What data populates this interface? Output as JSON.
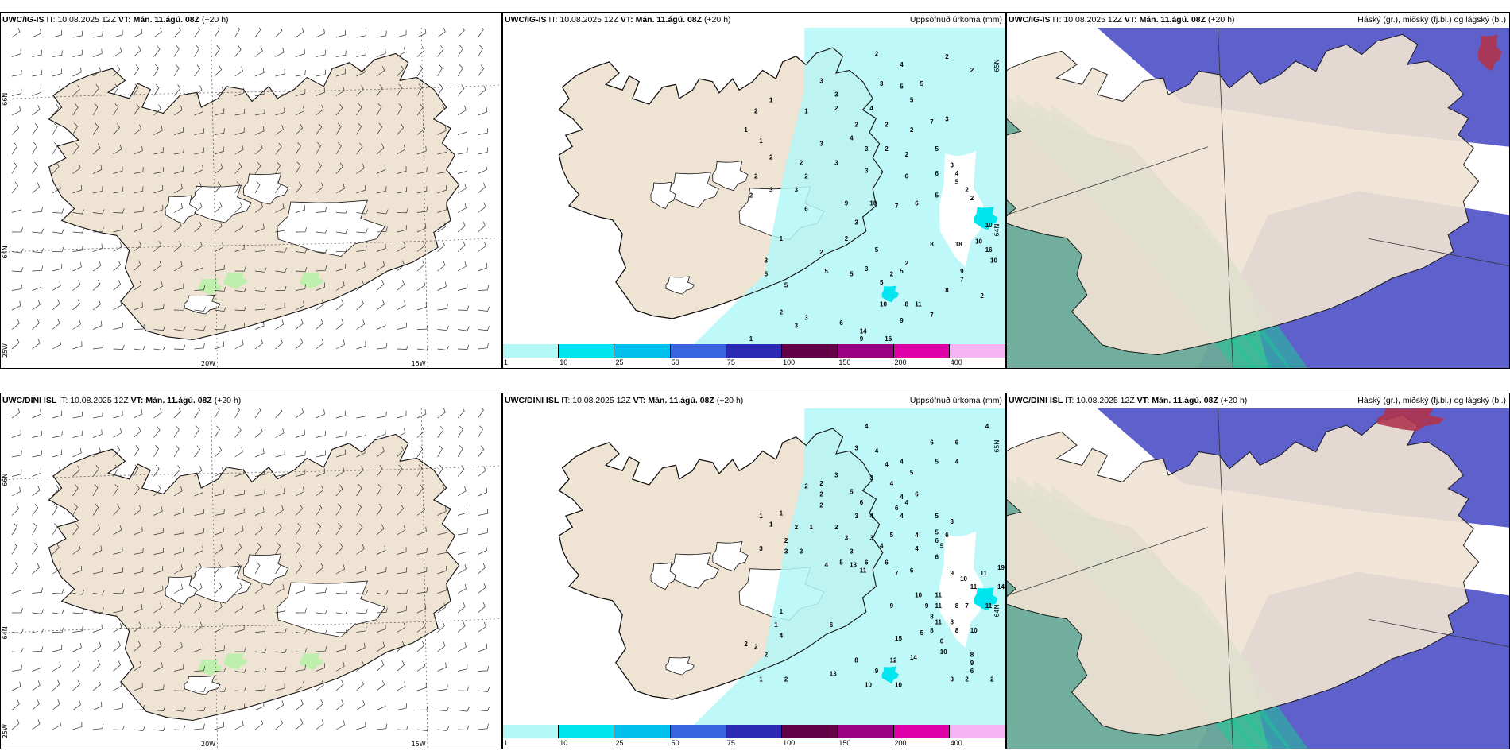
{
  "colors": {
    "land": "#efe3d3",
    "coast": "#111111",
    "precip_light": "#b4f7f7",
    "precip_cyan": "#00e6f0",
    "cloud_high": "#5557c8",
    "cloud_mid": "#1fc796",
    "cloud_low": "#6aaa98",
    "wind_green": "#b9f0a8"
  },
  "rows": [
    {
      "model": "UWC/IG-IS",
      "init_prefix": "IT:",
      "init": "10.08.2025 12Z",
      "valid_prefix": "VT:",
      "valid": "Mán. 11.ágú. 08Z",
      "lead": "(+20 h)"
    },
    {
      "model": "UWC/DINI ISL",
      "init_prefix": "IT:",
      "init": "10.08.2025 12Z",
      "valid_prefix": "VT:",
      "valid": "Mán. 11.ágú. 08Z",
      "lead": "(+20 h)"
    }
  ],
  "precip_title": "Uppsöfnuð úrkoma (mm)",
  "cloud_title": "Háský (gr.), miðský (fj.bl.) og lágský (bl.)",
  "wind_axis_labels": {
    "lat_66": "66N",
    "lat_64": "64N",
    "lat_2": "25W",
    "lon_20": "20W",
    "lon_15": "15W"
  },
  "precip_axis_labels": {
    "lat_65": "65N",
    "lat_64": "64N"
  },
  "colorbar": {
    "colors": [
      "#b4f7f7",
      "#00e6f0",
      "#00c2ec",
      "#3a64e0",
      "#2b2ab4",
      "#640048",
      "#9a0082",
      "#e000a8",
      "#f7b4f5"
    ],
    "ticks": [
      "1",
      "10",
      "25",
      "50",
      "75",
      "100",
      "150",
      "200",
      "400"
    ]
  },
  "precip_values_top": [
    {
      "v": "2",
      "p": [
        0.74,
        0.08
      ]
    },
    {
      "v": "4",
      "p": [
        0.79,
        0.12
      ]
    },
    {
      "v": "2",
      "p": [
        0.88,
        0.09
      ]
    },
    {
      "v": "2",
      "p": [
        0.93,
        0.14
      ]
    },
    {
      "v": "3",
      "p": [
        0.63,
        0.18
      ]
    },
    {
      "v": "3",
      "p": [
        0.75,
        0.19
      ]
    },
    {
      "v": "5",
      "p": [
        0.79,
        0.2
      ]
    },
    {
      "v": "5",
      "p": [
        0.83,
        0.19
      ]
    },
    {
      "v": "3",
      "p": [
        0.66,
        0.23
      ]
    },
    {
      "v": "1",
      "p": [
        0.53,
        0.25
      ]
    },
    {
      "v": "2",
      "p": [
        0.5,
        0.29
      ]
    },
    {
      "v": "1",
      "p": [
        0.6,
        0.29
      ]
    },
    {
      "v": "2",
      "p": [
        0.66,
        0.28
      ]
    },
    {
      "v": "4",
      "p": [
        0.73,
        0.28
      ]
    },
    {
      "v": "5",
      "p": [
        0.81,
        0.25
      ]
    },
    {
      "v": "7",
      "p": [
        0.85,
        0.33
      ]
    },
    {
      "v": "3",
      "p": [
        0.88,
        0.32
      ]
    },
    {
      "v": "1",
      "p": [
        0.48,
        0.36
      ]
    },
    {
      "v": "2",
      "p": [
        0.7,
        0.34
      ]
    },
    {
      "v": "2",
      "p": [
        0.76,
        0.34
      ]
    },
    {
      "v": "2",
      "p": [
        0.81,
        0.36
      ]
    },
    {
      "v": "1",
      "p": [
        0.51,
        0.4
      ]
    },
    {
      "v": "3",
      "p": [
        0.63,
        0.41
      ]
    },
    {
      "v": "4",
      "p": [
        0.69,
        0.39
      ]
    },
    {
      "v": "3",
      "p": [
        0.72,
        0.43
      ]
    },
    {
      "v": "2",
      "p": [
        0.76,
        0.43
      ]
    },
    {
      "v": "2",
      "p": [
        0.8,
        0.45
      ]
    },
    {
      "v": "2",
      "p": [
        0.53,
        0.46
      ]
    },
    {
      "v": "2",
      "p": [
        0.59,
        0.48
      ]
    },
    {
      "v": "3",
      "p": [
        0.66,
        0.48
      ]
    },
    {
      "v": "3",
      "p": [
        0.72,
        0.51
      ]
    },
    {
      "v": "5",
      "p": [
        0.86,
        0.43
      ]
    },
    {
      "v": "2",
      "p": [
        0.5,
        0.53
      ]
    },
    {
      "v": "2",
      "p": [
        0.6,
        0.53
      ]
    },
    {
      "v": "6",
      "p": [
        0.8,
        0.53
      ]
    },
    {
      "v": "6",
      "p": [
        0.86,
        0.52
      ]
    },
    {
      "v": "4",
      "p": [
        0.9,
        0.52
      ]
    },
    {
      "v": "3",
      "p": [
        0.89,
        0.49
      ]
    },
    {
      "v": "2",
      "p": [
        0.49,
        0.6
      ]
    },
    {
      "v": "3",
      "p": [
        0.53,
        0.58
      ]
    },
    {
      "v": "3",
      "p": [
        0.58,
        0.58
      ]
    },
    {
      "v": "5",
      "p": [
        0.9,
        0.55
      ]
    },
    {
      "v": "6",
      "p": [
        0.6,
        0.65
      ]
    },
    {
      "v": "9",
      "p": [
        0.68,
        0.63
      ]
    },
    {
      "v": "10",
      "p": [
        0.73,
        0.63
      ]
    },
    {
      "v": "7",
      "p": [
        0.78,
        0.64
      ]
    },
    {
      "v": "6",
      "p": [
        0.82,
        0.63
      ]
    },
    {
      "v": "5",
      "p": [
        0.86,
        0.6
      ]
    },
    {
      "v": "2",
      "p": [
        0.93,
        0.61
      ]
    },
    {
      "v": "2",
      "p": [
        0.92,
        0.58
      ]
    },
    {
      "v": "3",
      "p": [
        0.7,
        0.7
      ]
    },
    {
      "v": "2",
      "p": [
        0.68,
        0.76
      ]
    },
    {
      "v": "10",
      "p": [
        0.96,
        0.71
      ]
    },
    {
      "v": "8",
      "p": [
        0.85,
        0.78
      ]
    },
    {
      "v": "10",
      "p": [
        0.94,
        0.77
      ]
    },
    {
      "v": "18",
      "p": [
        0.9,
        0.78
      ]
    },
    {
      "v": "16",
      "p": [
        0.96,
        0.8
      ]
    },
    {
      "v": "10",
      "p": [
        0.97,
        0.84
      ]
    },
    {
      "v": "1",
      "p": [
        0.55,
        0.76
      ]
    },
    {
      "v": "2",
      "p": [
        0.63,
        0.81
      ]
    },
    {
      "v": "5",
      "p": [
        0.74,
        0.8
      ]
    },
    {
      "v": "3",
      "p": [
        0.72,
        0.87
      ]
    },
    {
      "v": "5",
      "p": [
        0.69,
        0.89
      ]
    },
    {
      "v": "3",
      "p": [
        0.52,
        0.84
      ]
    },
    {
      "v": "5",
      "p": [
        0.52,
        0.89
      ]
    },
    {
      "v": "5",
      "p": [
        0.56,
        0.93
      ]
    },
    {
      "v": "5",
      "p": [
        0.64,
        0.88
      ]
    },
    {
      "v": "2",
      "p": [
        0.8,
        0.85
      ]
    },
    {
      "v": "5",
      "p": [
        0.79,
        0.88
      ]
    },
    {
      "v": "5",
      "p": [
        0.75,
        0.92
      ]
    },
    {
      "v": "2",
      "p": [
        0.77,
        0.89
      ]
    },
    {
      "v": "9",
      "p": [
        0.91,
        0.88
      ]
    },
    {
      "v": "7",
      "p": [
        0.91,
        0.91
      ]
    },
    {
      "v": "8",
      "p": [
        0.88,
        0.95
      ]
    },
    {
      "v": "10",
      "p": [
        0.75,
        1.0
      ]
    },
    {
      "v": "8",
      "p": [
        0.8,
        1.0
      ]
    },
    {
      "v": "11",
      "p": [
        0.82,
        1.0
      ]
    },
    {
      "v": "2",
      "p": [
        0.95,
        0.97
      ]
    },
    {
      "v": "7",
      "p": [
        0.85,
        1.04
      ]
    },
    {
      "v": "2",
      "p": [
        0.55,
        1.03
      ]
    },
    {
      "v": "3",
      "p": [
        0.58,
        1.08
      ]
    },
    {
      "v": "6",
      "p": [
        0.67,
        1.07
      ]
    },
    {
      "v": "14",
      "p": [
        0.71,
        1.1
      ]
    },
    {
      "v": "9",
      "p": [
        0.79,
        1.06
      ]
    },
    {
      "v": "16",
      "p": [
        0.76,
        1.13
      ]
    },
    {
      "v": "1",
      "p": [
        0.49,
        1.13
      ]
    },
    {
      "v": "9",
      "p": [
        0.71,
        1.13
      ]
    },
    {
      "v": "3",
      "p": [
        0.6,
        1.05
      ]
    }
  ],
  "precip_values_bottom": [
    {
      "v": "4",
      "p": [
        0.72,
        0.05
      ]
    },
    {
      "v": "4",
      "p": [
        0.96,
        0.05
      ]
    },
    {
      "v": "6",
      "p": [
        0.85,
        0.11
      ]
    },
    {
      "v": "6",
      "p": [
        0.9,
        0.11
      ]
    },
    {
      "v": "3",
      "p": [
        0.7,
        0.13
      ]
    },
    {
      "v": "4",
      "p": [
        0.74,
        0.14
      ]
    },
    {
      "v": "4",
      "p": [
        0.76,
        0.19
      ]
    },
    {
      "v": "4",
      "p": [
        0.79,
        0.18
      ]
    },
    {
      "v": "5",
      "p": [
        0.86,
        0.18
      ]
    },
    {
      "v": "4",
      "p": [
        0.9,
        0.18
      ]
    },
    {
      "v": "3",
      "p": [
        0.73,
        0.24
      ]
    },
    {
      "v": "3",
      "p": [
        0.66,
        0.23
      ]
    },
    {
      "v": "4",
      "p": [
        0.77,
        0.26
      ]
    },
    {
      "v": "5",
      "p": [
        0.81,
        0.22
      ]
    },
    {
      "v": "2",
      "p": [
        0.6,
        0.27
      ]
    },
    {
      "v": "2",
      "p": [
        0.63,
        0.26
      ]
    },
    {
      "v": "2",
      "p": [
        0.63,
        0.3
      ]
    },
    {
      "v": "5",
      "p": [
        0.69,
        0.29
      ]
    },
    {
      "v": "4",
      "p": [
        0.79,
        0.31
      ]
    },
    {
      "v": "6",
      "p": [
        0.82,
        0.3
      ]
    },
    {
      "v": "2",
      "p": [
        0.63,
        0.34
      ]
    },
    {
      "v": "6",
      "p": [
        0.71,
        0.33
      ]
    },
    {
      "v": "6",
      "p": [
        0.78,
        0.35
      ]
    },
    {
      "v": "4",
      "p": [
        0.8,
        0.33
      ]
    },
    {
      "v": "1",
      "p": [
        0.51,
        0.38
      ]
    },
    {
      "v": "1",
      "p": [
        0.55,
        0.37
      ]
    },
    {
      "v": "3",
      "p": [
        0.7,
        0.38
      ]
    },
    {
      "v": "4",
      "p": [
        0.73,
        0.38
      ]
    },
    {
      "v": "4",
      "p": [
        0.79,
        0.38
      ]
    },
    {
      "v": "5",
      "p": [
        0.86,
        0.38
      ]
    },
    {
      "v": "3",
      "p": [
        0.89,
        0.4
      ]
    },
    {
      "v": "1",
      "p": [
        0.53,
        0.41
      ]
    },
    {
      "v": "2",
      "p": [
        0.58,
        0.42
      ]
    },
    {
      "v": "1",
      "p": [
        0.61,
        0.42
      ]
    },
    {
      "v": "2",
      "p": [
        0.66,
        0.42
      ]
    },
    {
      "v": "3",
      "p": [
        0.68,
        0.46
      ]
    },
    {
      "v": "3",
      "p": [
        0.73,
        0.46
      ]
    },
    {
      "v": "5",
      "p": [
        0.77,
        0.45
      ]
    },
    {
      "v": "4",
      "p": [
        0.82,
        0.45
      ]
    },
    {
      "v": "5",
      "p": [
        0.86,
        0.44
      ]
    },
    {
      "v": "6",
      "p": [
        0.88,
        0.45
      ]
    },
    {
      "v": "2",
      "p": [
        0.56,
        0.47
      ]
    },
    {
      "v": "4",
      "p": [
        0.75,
        0.49
      ]
    },
    {
      "v": "6",
      "p": [
        0.86,
        0.47
      ]
    },
    {
      "v": "3",
      "p": [
        0.51,
        0.5
      ]
    },
    {
      "v": "3",
      "p": [
        0.56,
        0.51
      ]
    },
    {
      "v": "3",
      "p": [
        0.59,
        0.51
      ]
    },
    {
      "v": "3",
      "p": [
        0.69,
        0.51
      ]
    },
    {
      "v": "4",
      "p": [
        0.82,
        0.5
      ]
    },
    {
      "v": "5",
      "p": [
        0.87,
        0.49
      ]
    },
    {
      "v": "6",
      "p": [
        0.86,
        0.53
      ]
    },
    {
      "v": "4",
      "p": [
        0.64,
        0.56
      ]
    },
    {
      "v": "5",
      "p": [
        0.67,
        0.55
      ]
    },
    {
      "v": "13",
      "p": [
        0.69,
        0.56
      ]
    },
    {
      "v": "6",
      "p": [
        0.72,
        0.55
      ]
    },
    {
      "v": "11",
      "p": [
        0.71,
        0.58
      ]
    },
    {
      "v": "6",
      "p": [
        0.76,
        0.55
      ]
    },
    {
      "v": "7",
      "p": [
        0.78,
        0.59
      ]
    },
    {
      "v": "6",
      "p": [
        0.81,
        0.58
      ]
    },
    {
      "v": "9",
      "p": [
        0.89,
        0.59
      ]
    },
    {
      "v": "10",
      "p": [
        0.91,
        0.61
      ]
    },
    {
      "v": "11",
      "p": [
        0.95,
        0.59
      ]
    },
    {
      "v": "19",
      "p": [
        0.99,
        0.57
      ]
    },
    {
      "v": "11",
      "p": [
        0.93,
        0.64
      ]
    },
    {
      "v": "14",
      "p": [
        0.99,
        0.64
      ]
    },
    {
      "v": "10",
      "p": [
        0.82,
        0.67
      ]
    },
    {
      "v": "11",
      "p": [
        0.86,
        0.67
      ]
    },
    {
      "v": "9",
      "p": [
        0.84,
        0.71
      ]
    },
    {
      "v": "11",
      "p": [
        0.86,
        0.71
      ]
    },
    {
      "v": "8",
      "p": [
        0.9,
        0.71
      ]
    },
    {
      "v": "7",
      "p": [
        0.92,
        0.71
      ]
    },
    {
      "v": "11",
      "p": [
        0.96,
        0.71
      ]
    },
    {
      "v": "9",
      "p": [
        0.77,
        0.71
      ]
    },
    {
      "v": "8",
      "p": [
        0.85,
        0.75
      ]
    },
    {
      "v": "11",
      "p": [
        0.86,
        0.77
      ]
    },
    {
      "v": "8",
      "p": [
        0.89,
        0.77
      ]
    },
    {
      "v": "8",
      "p": [
        0.85,
        0.8
      ]
    },
    {
      "v": "8",
      "p": [
        0.9,
        0.8
      ]
    },
    {
      "v": "10",
      "p": [
        0.93,
        0.8
      ]
    },
    {
      "v": "5",
      "p": [
        0.83,
        0.81
      ]
    },
    {
      "v": "15",
      "p": [
        0.78,
        0.83
      ]
    },
    {
      "v": "6",
      "p": [
        0.87,
        0.84
      ]
    },
    {
      "v": "10",
      "p": [
        0.87,
        0.88
      ]
    },
    {
      "v": "8",
      "p": [
        0.93,
        0.89
      ]
    },
    {
      "v": "9",
      "p": [
        0.93,
        0.92
      ]
    },
    {
      "v": "6",
      "p": [
        0.93,
        0.95
      ]
    },
    {
      "v": "12",
      "p": [
        0.77,
        0.91
      ]
    },
    {
      "v": "14",
      "p": [
        0.81,
        0.9
      ]
    },
    {
      "v": "8",
      "p": [
        0.7,
        0.91
      ]
    },
    {
      "v": "9",
      "p": [
        0.74,
        0.95
      ]
    },
    {
      "v": "13",
      "p": [
        0.65,
        0.96
      ]
    },
    {
      "v": "4",
      "p": [
        0.55,
        0.82
      ]
    },
    {
      "v": "2",
      "p": [
        0.48,
        0.85
      ]
    },
    {
      "v": "2",
      "p": [
        0.5,
        0.86
      ]
    },
    {
      "v": "2",
      "p": [
        0.52,
        0.89
      ]
    },
    {
      "v": "1",
      "p": [
        0.54,
        0.78
      ]
    },
    {
      "v": "6",
      "p": [
        0.65,
        0.78
      ]
    },
    {
      "v": "2",
      "p": [
        0.56,
        0.98
      ]
    },
    {
      "v": "1",
      "p": [
        0.51,
        0.98
      ]
    },
    {
      "v": "10",
      "p": [
        0.72,
        1.0
      ]
    },
    {
      "v": "10",
      "p": [
        0.78,
        1.0
      ]
    },
    {
      "v": "2",
      "p": [
        0.92,
        0.98
      ]
    },
    {
      "v": "3",
      "p": [
        0.89,
        0.98
      ]
    },
    {
      "v": "2",
      "p": [
        0.97,
        0.98
      ]
    },
    {
      "v": "1",
      "p": [
        0.55,
        0.73
      ]
    }
  ]
}
